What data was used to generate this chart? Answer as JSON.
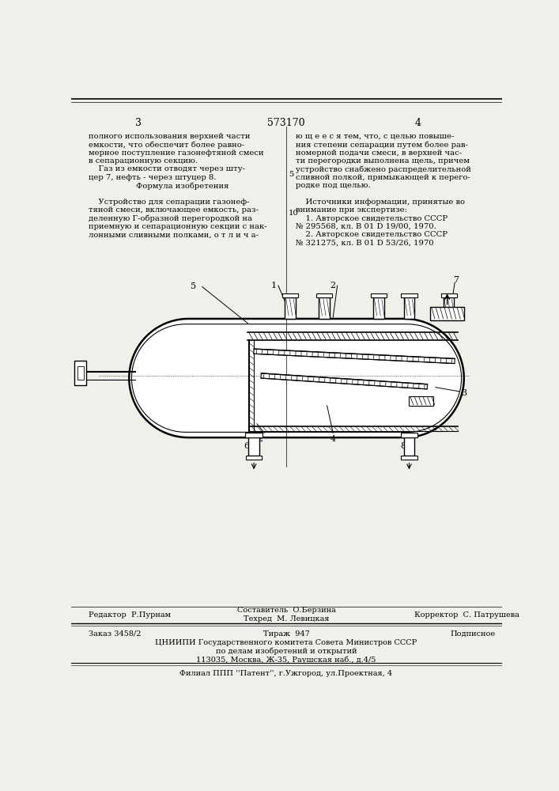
{
  "bg_color": "#f0f0ea",
  "page_num_left": "3",
  "page_num_right": "4",
  "patent_number": "573170",
  "text_fontsize": 7.2,
  "left_col_lines": [
    "полного использования верхней части",
    "емкости, что обеспечит более равно-",
    "мерное поступление газонефтяной смеси",
    "в сепарационную секцию.",
    "    Газ из емкости отводят через шту-",
    "цер 7, нефть - через штуцер 8.",
    "         Формула изобретения",
    "",
    "    Устройство для сепарации газонеф-",
    "тяной смеси, включающее емкость, раз-",
    "деленную Г-образной перегородкой на",
    "приемную и сепарационную секции с нак-",
    "лонными сливными полками, о т л и ч а-"
  ],
  "right_col_lines": [
    "ю щ е е с я тем, что, с целью повыше-",
    "ния степени сепарации путем более рав-",
    "номерной подачи смеси, в верхней час-",
    "ти перегородки выполнена щель, причем",
    "устройство снабжено распределительной",
    "сливной полкой, примыкающей к перего-",
    "родке под щелью.",
    "",
    "    Источники информации, принятые во",
    "внимание при экспертизе:",
    "    1. Авторское свидетельство СССР",
    "№ 295568, кл. В 01 D 19/00, 1970.",
    "    2. Авторское свидетельство СССР",
    "№ 321275, кл. В 01 D 53/26, 1970"
  ]
}
